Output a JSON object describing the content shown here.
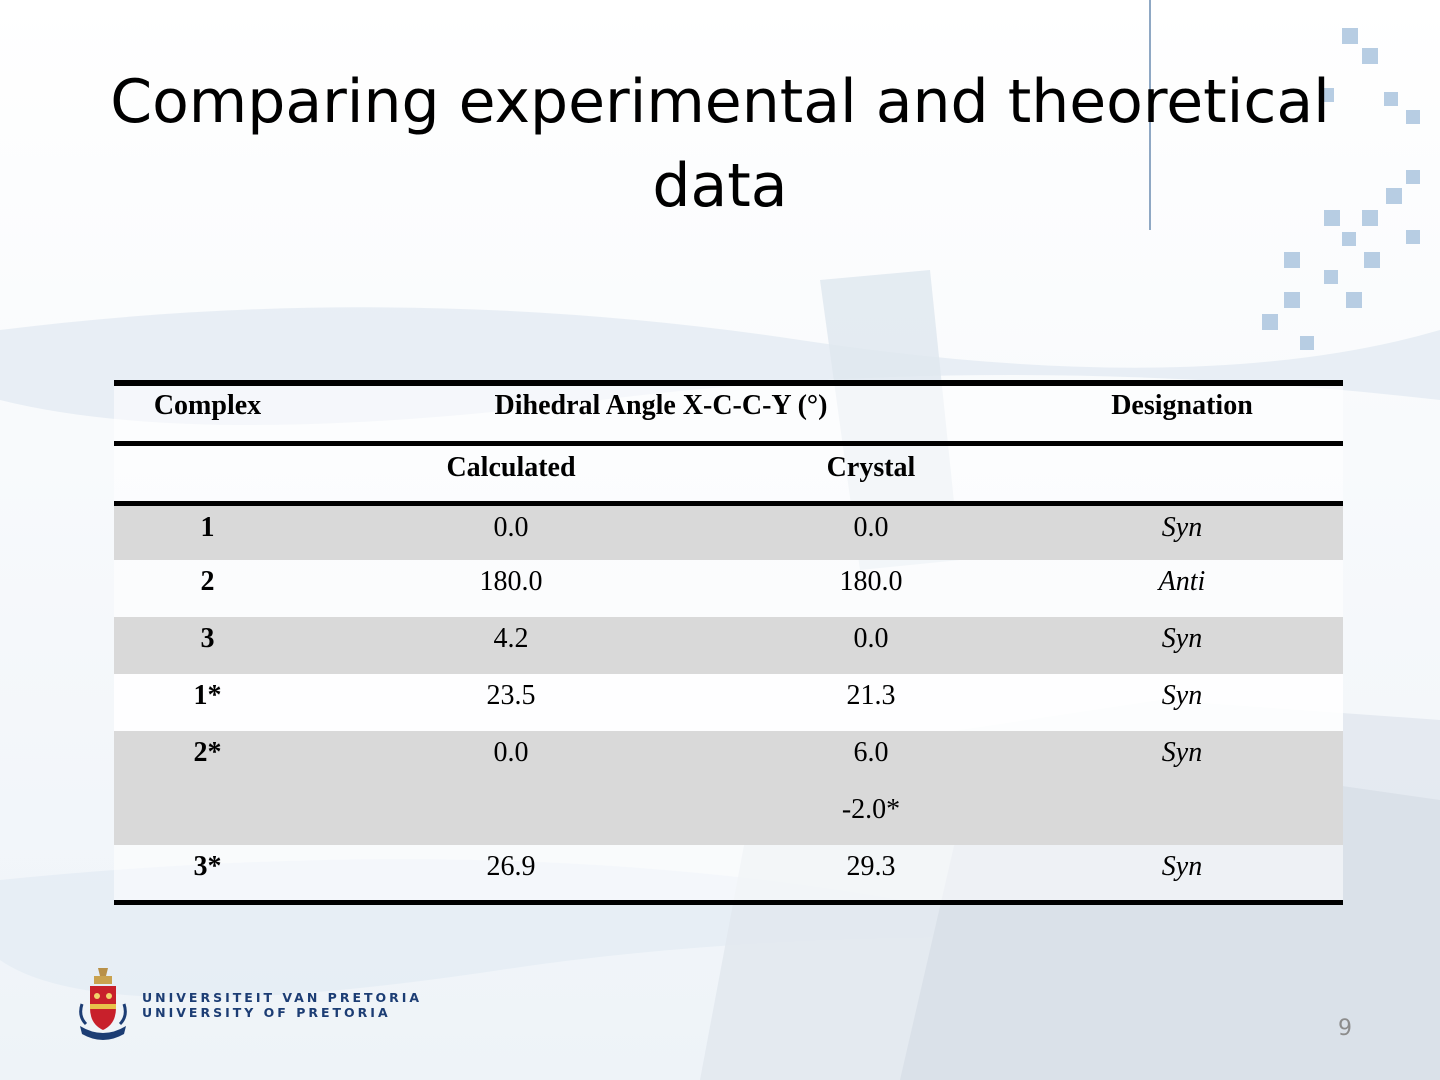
{
  "slide": {
    "title_line1": "Comparing experimental and theoretical",
    "title_line2": "data",
    "page_number": "9"
  },
  "table": {
    "header": {
      "complex": "Complex",
      "dihedral": "Dihedral Angle X-C-C-Y (°)",
      "designation": "Designation",
      "calculated": "Calculated",
      "crystal": "Crystal"
    },
    "rows": [
      {
        "complex": "1",
        "calculated": "0.0",
        "crystal": "0.0",
        "designation": "Syn"
      },
      {
        "complex": "2",
        "calculated": "180.0",
        "crystal": "180.0",
        "designation": "Anti"
      },
      {
        "complex": "3",
        "calculated": "4.2",
        "crystal": "0.0",
        "designation": "Syn"
      },
      {
        "complex": "1*",
        "calculated": "23.5",
        "crystal": "21.3",
        "designation": "Syn"
      },
      {
        "complex": "2*",
        "calculated": "0.0",
        "crystal": "6.0",
        "crystal_extra": "-2.0*",
        "designation": "Syn"
      },
      {
        "complex": "3*",
        "calculated": "26.9",
        "crystal": "29.3",
        "designation": "Syn"
      }
    ]
  },
  "logo": {
    "line1": "UNIVERSITEIT VAN PRETORIA",
    "line2": "UNIVERSITY OF PRETORIA"
  },
  "colors": {
    "row_shade": "#d9d9d9",
    "logo_text": "#1c3d74",
    "page_number": "#8c8c8c"
  }
}
